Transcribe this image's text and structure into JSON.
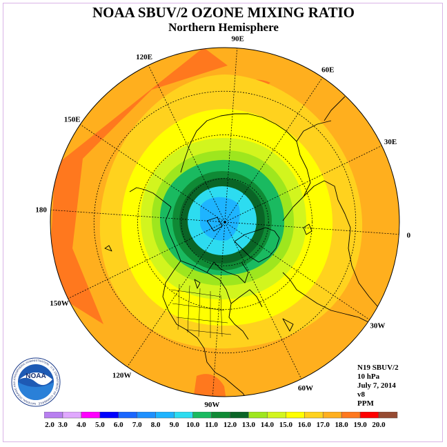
{
  "title": "NOAA SBUV/2 OZONE MIXING RATIO",
  "subtitle": "Northern Hemisphere",
  "longitude_labels": [
    {
      "text": "90E",
      "lon": 90
    },
    {
      "text": "60E",
      "lon": 60
    },
    {
      "text": "30E",
      "lon": 30
    },
    {
      "text": "0",
      "lon": 0
    },
    {
      "text": "30W",
      "lon": -30
    },
    {
      "text": "60W",
      "lon": -60
    },
    {
      "text": "90W",
      "lon": -90
    },
    {
      "text": "120W",
      "lon": -120
    },
    {
      "text": "150W",
      "lon": -150
    },
    {
      "text": "180",
      "lon": 180
    },
    {
      "text": "150E",
      "lon": 150
    },
    {
      "text": "120E",
      "lon": 120
    }
  ],
  "info": {
    "satellite": "N19 SBUV/2",
    "level": "10 hPa",
    "date": "July 7, 2014",
    "version": "v8",
    "units": "PPM"
  },
  "logo": {
    "text": "NOAA",
    "ring_text": "NATIONAL OCEANIC AND ATMOSPHERIC ADMINISTRATION · U.S. DEPARTMENT OF COMMERCE"
  },
  "colorbar": {
    "labels": [
      "2.0",
      "3.0",
      "4.0",
      "5.0",
      "6.0",
      "7.0",
      "8.0",
      "9.0",
      "10.0",
      "11.0",
      "12.0",
      "13.0",
      "14.0",
      "15.0",
      "16.0",
      "17.0",
      "18.0",
      "19.0",
      "20.0"
    ],
    "colors": [
      "#b87ff0",
      "#e0a8ff",
      "#ff00ff",
      "#0000ff",
      "#1a66ff",
      "#1e90ff",
      "#1eb4ff",
      "#2ddcf0",
      "#1aba60",
      "#0f8a35",
      "#0a6426",
      "#9ee61e",
      "#d2f51e",
      "#ffff00",
      "#ffd21e",
      "#ffaf1e",
      "#ff781e",
      "#ff0000",
      "#964b32"
    ]
  },
  "map_colors": {
    "outer": "#ffaf1e",
    "band_orange": "#ff781e",
    "ring_16": "#ffd21e",
    "ring_15": "#ffff00",
    "ring_14": "#d2f51e",
    "ring_13": "#9ee61e",
    "ring_11": "#0f8a35",
    "ring_12": "#0a6426",
    "ring_10": "#1aba60",
    "ring_9": "#2ddcf0",
    "pole": "#1eb4ff"
  }
}
